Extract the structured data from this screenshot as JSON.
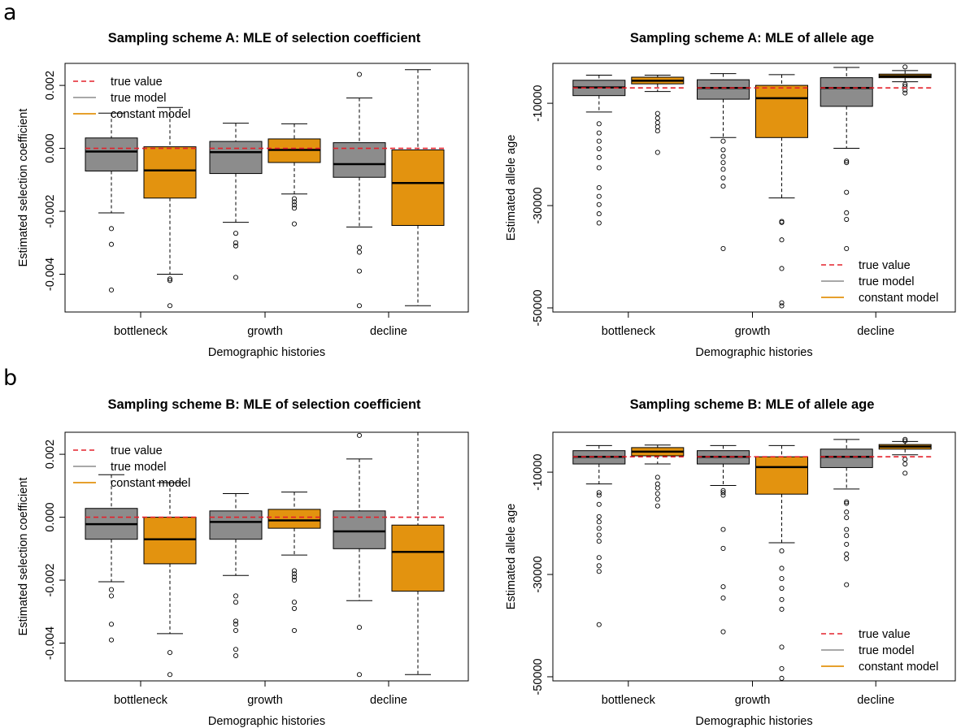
{
  "panels": [
    {
      "letter": "a"
    },
    {
      "letter": "b"
    }
  ],
  "colors": {
    "true_model": "#8c8c8c",
    "constant_model": "#e3930f",
    "true_value": "#e4202b"
  },
  "legend": {
    "true_value": "true value",
    "true_model": "true model",
    "constant_model": "constant model"
  },
  "chart_data": [
    {
      "type": "box",
      "title": "Sampling scheme A: MLE of selection coefficient",
      "xlabel": "Demographic histories",
      "ylabel": "Estimated selection coefficient",
      "categories": [
        "bottleneck",
        "growth",
        "decline"
      ],
      "ylim": [
        -0.0052,
        0.0027
      ],
      "yticks": [
        -0.004,
        -0.002,
        0.0,
        0.002
      ],
      "ytick_labels": [
        "-0.004",
        "-0.002",
        "0.000",
        "0.002"
      ],
      "legend_position": "top-left",
      "true_values": [
        0.0,
        0.0,
        0.0
      ],
      "series": [
        {
          "name": "true model",
          "boxes": [
            {
              "whislo": -0.00205,
              "q1": -0.00072,
              "med": -0.0001,
              "q3": 0.00033,
              "whishi": 0.00112,
              "fliers": [
                -0.00255,
                -0.00305,
                -0.0045
              ]
            },
            {
              "whislo": -0.00235,
              "q1": -0.0008,
              "med": -0.00012,
              "q3": 0.00022,
              "whishi": 0.0008,
              "fliers": [
                -0.0027,
                -0.003,
                -0.0031,
                -0.0041
              ]
            },
            {
              "whislo": -0.0025,
              "q1": -0.00092,
              "med": -0.0005,
              "q3": 0.00018,
              "whishi": 0.0016,
              "fliers": [
                -0.00315,
                -0.0033,
                -0.0039,
                -0.005,
                0.00235
              ]
            }
          ]
        },
        {
          "name": "constant model",
          "boxes": [
            {
              "whislo": -0.004,
              "q1": -0.00158,
              "med": -0.0007,
              "q3": 5e-05,
              "whishi": 0.0013,
              "fliers": [
                -0.0042,
                -0.00415,
                -0.005
              ]
            },
            {
              "whislo": -0.00145,
              "q1": -0.00045,
              "med": -5e-05,
              "q3": 0.0003,
              "whishi": 0.00078,
              "fliers": [
                -0.0016,
                -0.0017,
                -0.0018,
                -0.0019,
                -0.0024
              ]
            },
            {
              "whislo": -0.005,
              "q1": -0.00245,
              "med": -0.0011,
              "q3": -5e-05,
              "whishi": 0.0025,
              "fliers": []
            }
          ]
        }
      ]
    },
    {
      "type": "box",
      "title": "Sampling scheme A: MLE of allele age",
      "xlabel": "Demographic histories",
      "ylabel": "Estimated allele age",
      "categories": [
        "bottleneck",
        "growth",
        "decline"
      ],
      "ylim": [
        -50800,
        -2200
      ],
      "yticks": [
        -50000,
        -30000,
        -10000
      ],
      "ytick_labels": [
        "-50000",
        "-30000",
        "-10000"
      ],
      "legend_position": "bottom-right",
      "true_values": [
        -7000,
        -7000,
        -7000
      ],
      "series": [
        {
          "name": "true model",
          "boxes": [
            {
              "whislo": -11700,
              "q1": -8500,
              "med": -6900,
              "q3": -5500,
              "whishi": -4500,
              "fliers": [
                -14000,
                -15800,
                -17400,
                -18900,
                -20600,
                -22600,
                -26500,
                -28200,
                -29800,
                -31600,
                -33400
              ]
            },
            {
              "whislo": -16700,
              "q1": -9200,
              "med": -7000,
              "q3": -5400,
              "whishi": -4200,
              "fliers": [
                -17400,
                -19100,
                -20400,
                -21600,
                -22900,
                -24600,
                -26200,
                -38400
              ]
            },
            {
              "whislo": -18800,
              "q1": -10600,
              "med": -7000,
              "q3": -5000,
              "whishi": -3000,
              "fliers": [
                -21300,
                -21600,
                -27400,
                -31400,
                -32700,
                -38400
              ]
            }
          ]
        },
        {
          "name": "constant model",
          "boxes": [
            {
              "whislo": -7700,
              "q1": -6200,
              "med": -5600,
              "q3": -4900,
              "whishi": -4500,
              "fliers": [
                -12000,
                -12900,
                -13800,
                -14600,
                -15400,
                -19600
              ]
            },
            {
              "whislo": -28500,
              "q1": -16700,
              "med": -9000,
              "q3": -6500,
              "whishi": -4400,
              "fliers": [
                -33100,
                -33300,
                -36700,
                -42300,
                -49000,
                -49600
              ]
            },
            {
              "whislo": -5800,
              "q1": -5000,
              "med": -4700,
              "q3": -4300,
              "whishi": -3600,
              "fliers": [
                -2900,
                -6300,
                -6700,
                -7400,
                -8000
              ]
            }
          ]
        }
      ]
    },
    {
      "type": "box",
      "title": "Sampling scheme B: MLE of selection coefficient",
      "xlabel": "Demographic histories",
      "ylabel": "Estimated selection coefficient",
      "categories": [
        "bottleneck",
        "growth",
        "decline"
      ],
      "ylim": [
        -0.0052,
        0.0027
      ],
      "yticks": [
        -0.004,
        -0.002,
        0.0,
        0.002
      ],
      "ytick_labels": [
        "-0.004",
        "-0.002",
        "0.000",
        "0.002"
      ],
      "legend_position": "top-left",
      "true_values": [
        0.0,
        0.0,
        0.0
      ],
      "series": [
        {
          "name": "true model",
          "boxes": [
            {
              "whislo": -0.00205,
              "q1": -0.0007,
              "med": -0.00022,
              "q3": 0.00028,
              "whishi": 0.00135,
              "fliers": [
                -0.0023,
                -0.0025,
                -0.0034,
                -0.0039
              ]
            },
            {
              "whislo": -0.00185,
              "q1": -0.0007,
              "med": -0.00015,
              "q3": 0.0002,
              "whishi": 0.00075,
              "fliers": [
                -0.0025,
                -0.0027,
                -0.0033,
                -0.0034,
                -0.0036,
                -0.0042,
                -0.0044
              ]
            },
            {
              "whislo": -0.00265,
              "q1": -0.001,
              "med": -0.00045,
              "q3": 0.0002,
              "whishi": 0.00185,
              "fliers": [
                -0.0035,
                -0.005,
                0.0026
              ]
            }
          ]
        },
        {
          "name": "constant model",
          "boxes": [
            {
              "whislo": -0.0037,
              "q1": -0.00148,
              "med": -0.0007,
              "q3": 0.0,
              "whishi": 0.0011,
              "fliers": [
                -0.0043,
                -0.005
              ]
            },
            {
              "whislo": -0.0012,
              "q1": -0.00035,
              "med": -0.0001,
              "q3": 0.00025,
              "whishi": 0.0008,
              "fliers": [
                -0.0017,
                -0.0018,
                -0.0019,
                -0.002,
                -0.0027,
                -0.0029,
                -0.0036
              ]
            },
            {
              "whislo": -0.005,
              "q1": -0.00235,
              "med": -0.0011,
              "q3": -0.00025,
              "whishi": 0.0027,
              "fliers": []
            }
          ]
        }
      ]
    },
    {
      "type": "box",
      "title": "Sampling scheme B: MLE of allele age",
      "xlabel": "Demographic histories",
      "ylabel": "Estimated allele age",
      "categories": [
        "bottleneck",
        "growth",
        "decline"
      ],
      "ylim": [
        -50800,
        -2200
      ],
      "yticks": [
        -50000,
        -30000,
        -10000
      ],
      "ytick_labels": [
        "-50000",
        "-30000",
        "-10000"
      ],
      "legend_position": "bottom-right",
      "true_values": [
        -7000,
        -7000,
        -7000
      ],
      "series": [
        {
          "name": "true model",
          "boxes": [
            {
              "whislo": -12300,
              "q1": -8400,
              "med": -7000,
              "q3": -5800,
              "whishi": -4800,
              "fliers": [
                -14000,
                -14500,
                -16300,
                -18700,
                -19700,
                -21000,
                -22300,
                -23500,
                -26700,
                -28300,
                -29400,
                -39800
              ]
            },
            {
              "whislo": -12600,
              "q1": -8400,
              "med": -7000,
              "q3": -5800,
              "whishi": -4800,
              "fliers": [
                -13600,
                -14000,
                -14500,
                -21200,
                -24900,
                -32400,
                -34600,
                -41200
              ]
            },
            {
              "whislo": -13300,
              "q1": -9100,
              "med": -7000,
              "q3": -5500,
              "whishi": -3600,
              "fliers": [
                -15800,
                -16100,
                -17800,
                -18900,
                -21200,
                -22400,
                -24100,
                -26000,
                -26900,
                -32000
              ]
            }
          ]
        },
        {
          "name": "constant model",
          "boxes": [
            {
              "whislo": -8400,
              "q1": -6800,
              "med": -6000,
              "q3": -5200,
              "whishi": -4700,
              "fliers": [
                -11000,
                -12300,
                -13100,
                -14200,
                -15300,
                -16600
              ]
            },
            {
              "whislo": -23800,
              "q1": -14300,
              "med": -9000,
              "q3": -7000,
              "whishi": -4800,
              "fliers": [
                -25400,
                -28800,
                -30800,
                -32700,
                -34900,
                -36800,
                -44200,
                -48400,
                -50300
              ]
            },
            {
              "whislo": -6600,
              "q1": -5500,
              "med": -5000,
              "q3": -4600,
              "whishi": -4000,
              "fliers": [
                -3600,
                -3900,
                -7500,
                -8400,
                -10200
              ]
            }
          ]
        }
      ]
    }
  ]
}
